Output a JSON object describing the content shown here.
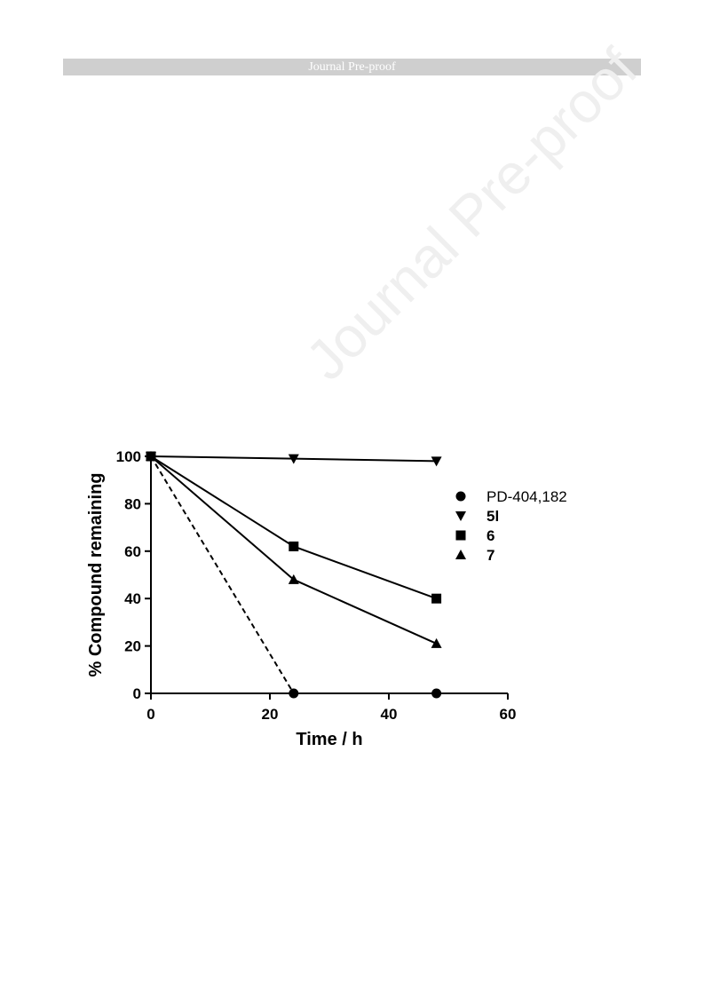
{
  "header": {
    "banner_text": "Journal Pre-proof"
  },
  "watermark": {
    "text": "Journal Pre-proof"
  },
  "chart_data": {
    "type": "line",
    "title": "",
    "xlabel": "Time / h",
    "ylabel": "% Compound remaining",
    "xlim": [
      0,
      60
    ],
    "ylim": [
      0,
      100
    ],
    "x_ticks": [
      0,
      20,
      40,
      60
    ],
    "y_ticks": [
      0,
      20,
      40,
      60,
      80,
      100
    ],
    "grid": false,
    "legend_position": "right",
    "series": [
      {
        "name": "PD-404,182",
        "marker": "circle",
        "line_style": "dashed",
        "label_bold": false,
        "x": [
          0,
          24,
          48
        ],
        "y": [
          100,
          0,
          0
        ]
      },
      {
        "name": "5l",
        "marker": "triangle-down",
        "line_style": "solid",
        "label_bold": true,
        "x": [
          0,
          24,
          48
        ],
        "y": [
          100,
          99,
          98
        ]
      },
      {
        "name": "6",
        "marker": "square",
        "line_style": "solid",
        "label_bold": true,
        "x": [
          0,
          24,
          48
        ],
        "y": [
          100,
          62,
          40
        ]
      },
      {
        "name": "7",
        "marker": "triangle-up",
        "line_style": "solid",
        "label_bold": true,
        "x": [
          0,
          24,
          48
        ],
        "y": [
          100,
          48,
          21
        ]
      }
    ]
  }
}
